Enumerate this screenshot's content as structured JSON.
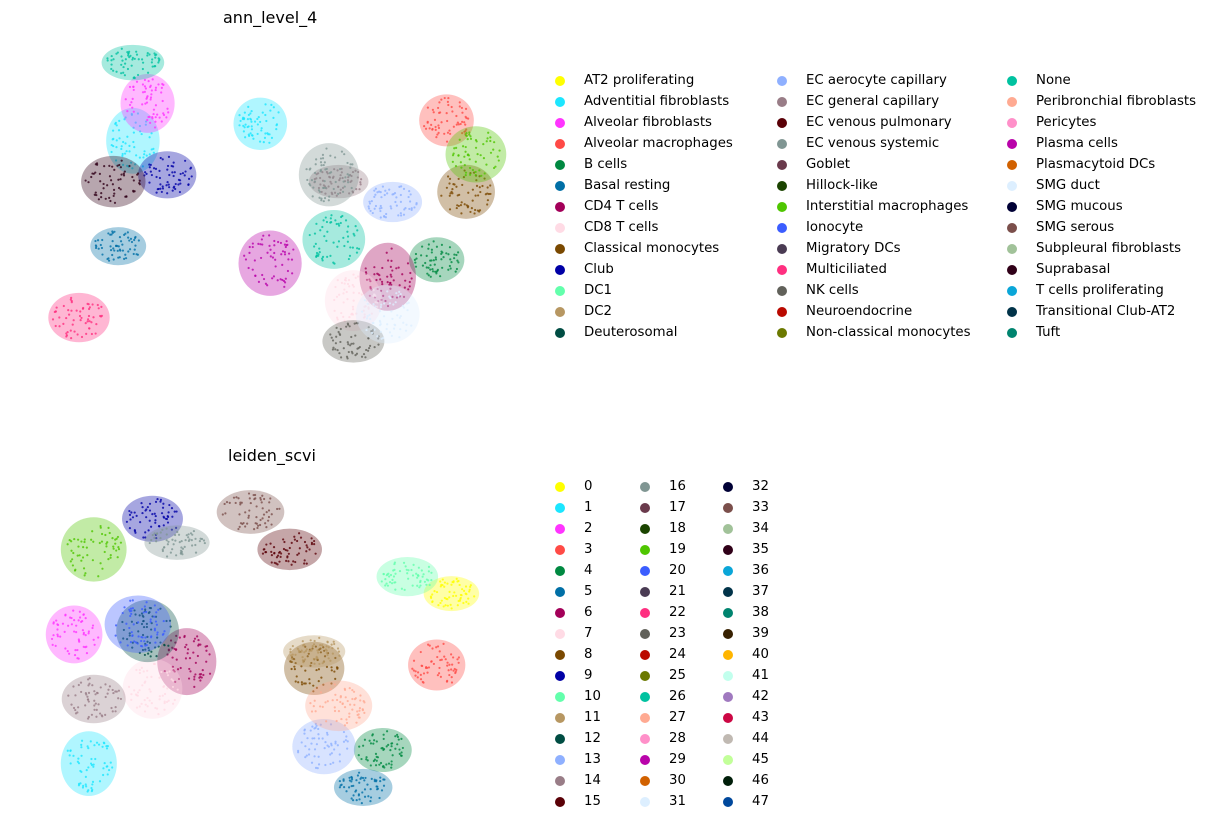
{
  "panels": [
    {
      "title": "ann_level_4",
      "legend_columns": 3,
      "legend_items": [
        {
          "label": "AT2 proliferating",
          "color": "#FFFF00"
        },
        {
          "label": "Adventitial fibroblasts",
          "color": "#1CE6FF"
        },
        {
          "label": "Alveolar fibroblasts",
          "color": "#FF34FF"
        },
        {
          "label": "Alveolar macrophages",
          "color": "#FF4A46"
        },
        {
          "label": "B cells",
          "color": "#008941"
        },
        {
          "label": "Basal resting",
          "color": "#006FA6"
        },
        {
          "label": "CD4 T cells",
          "color": "#A30059"
        },
        {
          "label": "CD8 T cells",
          "color": "#FFDBE5"
        },
        {
          "label": "Classical monocytes",
          "color": "#7A4900"
        },
        {
          "label": "Club",
          "color": "#0000A6"
        },
        {
          "label": "DC1",
          "color": "#63FFAC"
        },
        {
          "label": "DC2",
          "color": "#B79762"
        },
        {
          "label": "Deuterosomal",
          "color": "#004D43"
        },
        {
          "label": "EC aerocyte capillary",
          "color": "#8FB0FF"
        },
        {
          "label": "EC general capillary",
          "color": "#997D87"
        },
        {
          "label": "EC venous pulmonary",
          "color": "#5A0007"
        },
        {
          "label": "EC venous systemic",
          "color": "#809693"
        },
        {
          "label": "Goblet",
          "color": "#6A3A4C"
        },
        {
          "label": "Hillock-like",
          "color": "#1B4400"
        },
        {
          "label": "Interstitial macrophages",
          "color": "#4FC601"
        },
        {
          "label": "Ionocyte",
          "color": "#3B5DFF"
        },
        {
          "label": "Migratory DCs",
          "color": "#4A3B53"
        },
        {
          "label": "Multiciliated",
          "color": "#FF2F80"
        },
        {
          "label": "NK cells",
          "color": "#61615A"
        },
        {
          "label": "Neuroendocrine",
          "color": "#BA0900"
        },
        {
          "label": "Non-classical monocytes",
          "color": "#6B7900"
        },
        {
          "label": "None",
          "color": "#00C2A0"
        },
        {
          "label": "Peribronchial fibroblasts",
          "color": "#FFAA92"
        },
        {
          "label": "Pericytes",
          "color": "#FF90C9"
        },
        {
          "label": "Plasma cells",
          "color": "#B903AA"
        },
        {
          "label": "Plasmacytoid DCs",
          "color": "#D16100"
        },
        {
          "label": "SMG duct",
          "color": "#DDEFFF"
        },
        {
          "label": "SMG mucous",
          "color": "#000035"
        },
        {
          "label": "SMG serous",
          "color": "#7B4F4B"
        },
        {
          "label": "Subpleural fibroblasts",
          "color": "#A1C299"
        },
        {
          "label": "Suprabasal",
          "color": "#300018"
        },
        {
          "label": "T cells proliferating",
          "color": "#0AA6D8"
        },
        {
          "label": "Transitional Club-AT2",
          "color": "#013349"
        },
        {
          "label": "Tuft",
          "color": "#00846F"
        }
      ]
    },
    {
      "title": "leiden_scvi",
      "legend_columns": 3,
      "legend_items": [
        {
          "label": "0",
          "color": "#FFFF00"
        },
        {
          "label": "1",
          "color": "#1CE6FF"
        },
        {
          "label": "2",
          "color": "#FF34FF"
        },
        {
          "label": "3",
          "color": "#FF4A46"
        },
        {
          "label": "4",
          "color": "#008941"
        },
        {
          "label": "5",
          "color": "#006FA6"
        },
        {
          "label": "6",
          "color": "#A30059"
        },
        {
          "label": "7",
          "color": "#FFDBE5"
        },
        {
          "label": "8",
          "color": "#7A4900"
        },
        {
          "label": "9",
          "color": "#0000A6"
        },
        {
          "label": "10",
          "color": "#63FFAC"
        },
        {
          "label": "11",
          "color": "#B79762"
        },
        {
          "label": "12",
          "color": "#004D43"
        },
        {
          "label": "13",
          "color": "#8FB0FF"
        },
        {
          "label": "14",
          "color": "#997D87"
        },
        {
          "label": "15",
          "color": "#5A0007"
        },
        {
          "label": "16",
          "color": "#809693"
        },
        {
          "label": "17",
          "color": "#6A3A4C"
        },
        {
          "label": "18",
          "color": "#1B4400"
        },
        {
          "label": "19",
          "color": "#4FC601"
        },
        {
          "label": "20",
          "color": "#3B5DFF"
        },
        {
          "label": "21",
          "color": "#4A3B53"
        },
        {
          "label": "22",
          "color": "#FF2F80"
        },
        {
          "label": "23",
          "color": "#61615A"
        },
        {
          "label": "24",
          "color": "#BA0900"
        },
        {
          "label": "25",
          "color": "#6B7900"
        },
        {
          "label": "26",
          "color": "#00C2A0"
        },
        {
          "label": "27",
          "color": "#FFAA92"
        },
        {
          "label": "28",
          "color": "#FF90C9"
        },
        {
          "label": "29",
          "color": "#B903AA"
        },
        {
          "label": "30",
          "color": "#D16100"
        },
        {
          "label": "31",
          "color": "#DDEFFF"
        },
        {
          "label": "32",
          "color": "#000035"
        },
        {
          "label": "33",
          "color": "#7B4F4B"
        },
        {
          "label": "34",
          "color": "#A1C299"
        },
        {
          "label": "35",
          "color": "#300018"
        },
        {
          "label": "36",
          "color": "#0AA6D8"
        },
        {
          "label": "37",
          "color": "#013349"
        },
        {
          "label": "38",
          "color": "#00846F"
        },
        {
          "label": "39",
          "color": "#372101"
        },
        {
          "label": "40",
          "color": "#FFB500"
        },
        {
          "label": "41",
          "color": "#C2FFED"
        },
        {
          "label": "42",
          "color": "#A079BF"
        },
        {
          "label": "43",
          "color": "#CC0744"
        },
        {
          "label": "44",
          "color": "#C0B9B2"
        },
        {
          "label": "45",
          "color": "#C2FF99"
        },
        {
          "label": "46",
          "color": "#001E09"
        },
        {
          "label": "47",
          "color": "#00489C"
        }
      ]
    }
  ],
  "chart_data": [
    {
      "type": "scatter",
      "title": "ann_level_4",
      "xlabel": "",
      "ylabel": "",
      "grid": false,
      "axes_visible": false,
      "legend_position": "right",
      "series": [
        {
          "name": "Adventitial fibroblasts",
          "clusters": [
            {
              "x": 0.21,
              "y": 0.68
            },
            {
              "x": 0.47,
              "y": 0.73
            }
          ]
        },
        {
          "name": "Alveolar fibroblasts",
          "clusters": [
            {
              "x": 0.24,
              "y": 0.79
            }
          ]
        },
        {
          "name": "Alveolar macrophages",
          "clusters": [
            {
              "x": 0.85,
              "y": 0.74
            }
          ]
        },
        {
          "name": "B cells",
          "clusters": [
            {
              "x": 0.83,
              "y": 0.33
            }
          ]
        },
        {
          "name": "Basal resting",
          "clusters": [
            {
              "x": 0.18,
              "y": 0.37
            }
          ]
        },
        {
          "name": "CD4 T cells",
          "clusters": [
            {
              "x": 0.73,
              "y": 0.28
            }
          ]
        },
        {
          "name": "CD8 T cells",
          "clusters": [
            {
              "x": 0.66,
              "y": 0.21
            }
          ]
        },
        {
          "name": "Classical monocytes",
          "clusters": [
            {
              "x": 0.89,
              "y": 0.53
            }
          ]
        },
        {
          "name": "Club",
          "clusters": [
            {
              "x": 0.28,
              "y": 0.58
            }
          ]
        },
        {
          "name": "EC aerocyte capillary",
          "clusters": [
            {
              "x": 0.74,
              "y": 0.5
            }
          ]
        },
        {
          "name": "EC general capillary",
          "clusters": [
            {
              "x": 0.63,
              "y": 0.56
            }
          ]
        },
        {
          "name": "EC venous systemic",
          "clusters": [
            {
              "x": 0.61,
              "y": 0.58
            }
          ]
        },
        {
          "name": "Interstitial macrophages",
          "clusters": [
            {
              "x": 0.91,
              "y": 0.64
            }
          ]
        },
        {
          "name": "Multiciliated",
          "clusters": [
            {
              "x": 0.1,
              "y": 0.16
            }
          ]
        },
        {
          "name": "NK cells",
          "clusters": [
            {
              "x": 0.66,
              "y": 0.09
            }
          ]
        },
        {
          "name": "None",
          "clusters": [
            {
              "x": 0.21,
              "y": 0.91
            },
            {
              "x": 0.62,
              "y": 0.39
            }
          ]
        },
        {
          "name": "Plasma cells",
          "clusters": [
            {
              "x": 0.49,
              "y": 0.32
            }
          ]
        },
        {
          "name": "SMG duct",
          "clusters": [
            {
              "x": 0.73,
              "y": 0.17
            }
          ]
        },
        {
          "name": "Suprabasal",
          "clusters": [
            {
              "x": 0.17,
              "y": 0.56
            }
          ]
        }
      ]
    },
    {
      "type": "scatter",
      "title": "leiden_scvi",
      "xlabel": "",
      "ylabel": "",
      "grid": false,
      "axes_visible": false,
      "legend_position": "right",
      "series": [
        {
          "name": "0",
          "clusters": [
            {
              "x": 0.86,
              "y": 0.66
            }
          ]
        },
        {
          "name": "1",
          "clusters": [
            {
              "x": 0.12,
              "y": 0.16
            }
          ]
        },
        {
          "name": "2",
          "clusters": [
            {
              "x": 0.09,
              "y": 0.54
            }
          ]
        },
        {
          "name": "3",
          "clusters": [
            {
              "x": 0.83,
              "y": 0.45
            }
          ]
        },
        {
          "name": "4",
          "clusters": [
            {
              "x": 0.72,
              "y": 0.2
            }
          ]
        },
        {
          "name": "5",
          "clusters": [
            {
              "x": 0.68,
              "y": 0.09
            }
          ]
        },
        {
          "name": "6",
          "clusters": [
            {
              "x": 0.32,
              "y": 0.46
            }
          ]
        },
        {
          "name": "7",
          "clusters": [
            {
              "x": 0.25,
              "y": 0.38
            }
          ]
        },
        {
          "name": "8",
          "clusters": [
            {
              "x": 0.58,
              "y": 0.44
            }
          ]
        },
        {
          "name": "9",
          "clusters": [
            {
              "x": 0.25,
              "y": 0.88
            }
          ]
        },
        {
          "name": "10",
          "clusters": [
            {
              "x": 0.77,
              "y": 0.71
            }
          ]
        },
        {
          "name": "11",
          "clusters": [
            {
              "x": 0.58,
              "y": 0.49
            }
          ]
        },
        {
          "name": "12",
          "clusters": [
            {
              "x": 0.24,
              "y": 0.55
            }
          ]
        },
        {
          "name": "13",
          "clusters": [
            {
              "x": 0.6,
              "y": 0.21
            }
          ]
        },
        {
          "name": "14",
          "clusters": [
            {
              "x": 0.13,
              "y": 0.35
            }
          ]
        },
        {
          "name": "15",
          "clusters": [
            {
              "x": 0.53,
              "y": 0.79
            }
          ]
        },
        {
          "name": "16",
          "clusters": [
            {
              "x": 0.3,
              "y": 0.81
            }
          ]
        },
        {
          "name": "19",
          "clusters": [
            {
              "x": 0.13,
              "y": 0.79
            }
          ]
        },
        {
          "name": "20",
          "clusters": [
            {
              "x": 0.22,
              "y": 0.57
            }
          ]
        },
        {
          "name": "27",
          "clusters": [
            {
              "x": 0.63,
              "y": 0.33
            }
          ]
        },
        {
          "name": "33",
          "clusters": [
            {
              "x": 0.45,
              "y": 0.9
            }
          ]
        }
      ]
    }
  ]
}
